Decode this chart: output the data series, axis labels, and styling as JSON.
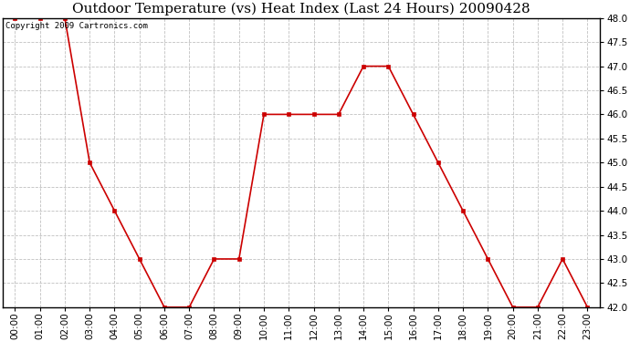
{
  "title": "Outdoor Temperature (vs) Heat Index (Last 24 Hours) 20090428",
  "copyright": "Copyright 2009 Cartronics.com",
  "x_labels": [
    "00:00",
    "01:00",
    "02:00",
    "03:00",
    "04:00",
    "05:00",
    "06:00",
    "07:00",
    "08:00",
    "09:00",
    "10:00",
    "11:00",
    "12:00",
    "13:00",
    "14:00",
    "15:00",
    "16:00",
    "17:00",
    "18:00",
    "19:00",
    "20:00",
    "21:00",
    "22:00",
    "23:00"
  ],
  "y_values": [
    48.0,
    48.0,
    48.0,
    45.0,
    44.0,
    43.0,
    42.0,
    42.0,
    43.0,
    43.0,
    46.0,
    46.0,
    46.0,
    46.0,
    47.0,
    47.0,
    46.0,
    45.0,
    44.0,
    43.0,
    42.0,
    42.0,
    43.0,
    42.0
  ],
  "ylim": [
    42.0,
    48.0
  ],
  "yticks": [
    42.0,
    42.5,
    43.0,
    43.5,
    44.0,
    44.5,
    45.0,
    45.5,
    46.0,
    46.5,
    47.0,
    47.5,
    48.0
  ],
  "line_color": "#cc0000",
  "marker": "s",
  "marker_size": 3,
  "background_color": "#ffffff",
  "grid_color": "#c0c0c0",
  "title_fontsize": 11,
  "axis_fontsize": 7.5,
  "copyright_fontsize": 6.5,
  "figwidth": 6.9,
  "figheight": 3.75,
  "dpi": 100
}
